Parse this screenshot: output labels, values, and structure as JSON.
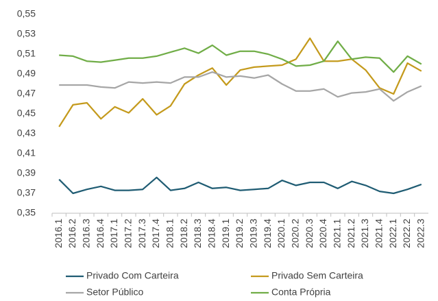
{
  "chart_data": {
    "type": "line",
    "categories": [
      "2016.1",
      "2016.2",
      "2016.3",
      "2016.4",
      "2017.1",
      "2017.2",
      "2017.3",
      "2017.4",
      "2018.1",
      "2018.2",
      "2018.3",
      "2018.4",
      "2019.1",
      "2019.2",
      "2019.3",
      "2019.4",
      "2020.1",
      "2020.2",
      "2020.3",
      "2020.4",
      "2021.1",
      "2021.2",
      "2021.3",
      "2021.4",
      "2022.1",
      "2022.2",
      "2022.3"
    ],
    "series": [
      {
        "name": "Privado Com Carteira",
        "color": "#1f5c73",
        "values": [
          0.384,
          0.37,
          0.374,
          0.377,
          0.373,
          0.373,
          0.374,
          0.386,
          0.373,
          0.375,
          0.381,
          0.375,
          0.376,
          0.373,
          0.374,
          0.375,
          0.383,
          0.378,
          0.381,
          0.381,
          0.375,
          0.382,
          0.378,
          0.372,
          0.37,
          0.374,
          0.379
        ]
      },
      {
        "name": "Privado Sem Carteira",
        "color": "#c49a1c",
        "values": [
          0.437,
          0.459,
          0.461,
          0.445,
          0.457,
          0.451,
          0.465,
          0.449,
          0.458,
          0.48,
          0.489,
          0.496,
          0.479,
          0.494,
          0.497,
          0.498,
          0.499,
          0.505,
          0.526,
          0.503,
          0.503,
          0.505,
          0.494,
          0.476,
          0.47,
          0.501,
          0.493
        ]
      },
      {
        "name": "Setor Público",
        "color": "#a6a6a6",
        "values": [
          0.479,
          0.479,
          0.479,
          0.477,
          0.476,
          0.482,
          0.481,
          0.482,
          0.481,
          0.487,
          0.487,
          0.492,
          0.487,
          0.488,
          0.486,
          0.489,
          0.48,
          0.473,
          0.473,
          0.475,
          0.467,
          0.471,
          0.472,
          0.475,
          0.463,
          0.472,
          0.478
        ]
      },
      {
        "name": "Conta Própria",
        "color": "#70ad47",
        "values": [
          0.509,
          0.508,
          0.503,
          0.502,
          0.504,
          0.506,
          0.506,
          0.508,
          0.512,
          0.516,
          0.511,
          0.519,
          0.509,
          0.513,
          0.513,
          0.51,
          0.505,
          0.498,
          0.499,
          0.503,
          0.523,
          0.505,
          0.507,
          0.506,
          0.492,
          0.508,
          0.5
        ]
      }
    ],
    "ylim": [
      0.35,
      0.55
    ],
    "yticks": [
      {
        "value": 0.35,
        "label": "0,35"
      },
      {
        "value": 0.37,
        "label": "0,37"
      },
      {
        "value": 0.39,
        "label": "0,39"
      },
      {
        "value": 0.41,
        "label": "0,41"
      },
      {
        "value": 0.43,
        "label": "0,43"
      },
      {
        "value": 0.45,
        "label": "0,45"
      },
      {
        "value": 0.47,
        "label": "0,47"
      },
      {
        "value": 0.49,
        "label": "0,49"
      },
      {
        "value": 0.51,
        "label": "0,51"
      },
      {
        "value": 0.53,
        "label": "0,53"
      },
      {
        "value": 0.55,
        "label": "0,55"
      }
    ],
    "grid": false,
    "legend": "bottom"
  }
}
